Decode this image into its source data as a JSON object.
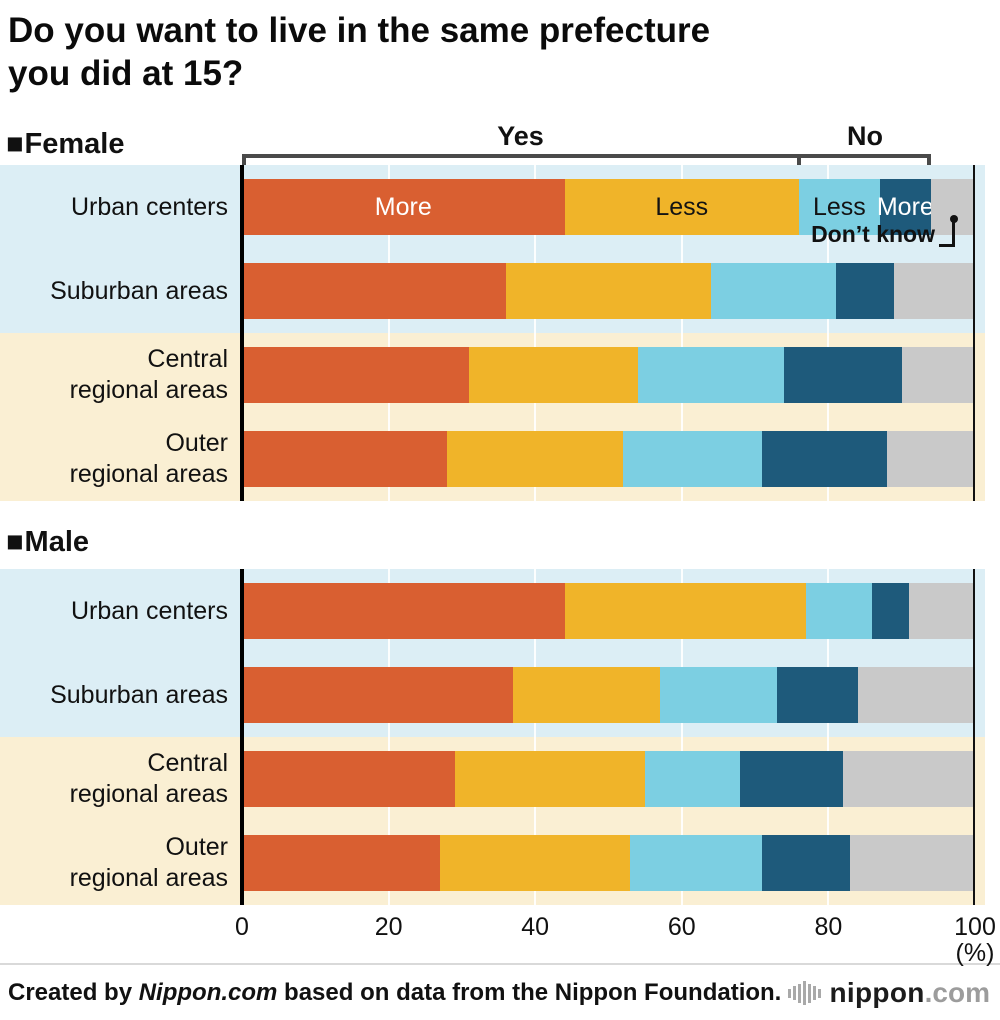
{
  "title": {
    "line1": "Do you want to live in the same prefecture",
    "line2": "you did at 15?"
  },
  "sections": {
    "female": {
      "marker": "■",
      "label": "Female"
    },
    "male": {
      "marker": "■",
      "label": "Male"
    }
  },
  "bracket": {
    "yes": "Yes",
    "no": "No"
  },
  "inline_labels": {
    "yes_more": "More",
    "yes_less": "Less",
    "no_less": "Less",
    "no_more": "More"
  },
  "callout": {
    "label": "Don’t know"
  },
  "axis": {
    "unit": "(%)"
  },
  "footer": {
    "credit_prefix": "Created by ",
    "credit_brand": "Nippon.com",
    "credit_suffix": " based on data from the Nippon Foundation.",
    "logo_main": "nippon",
    "logo_suffix": ".com"
  },
  "colors": {
    "yes_more": "#d95f31",
    "yes_less": "#f0b429",
    "no_less": "#7ccfe2",
    "no_more": "#1e5a7b",
    "dont_know": "#c9c9c9",
    "band_blue": "#dceef5",
    "band_cream": "#faefd3",
    "bracket_line": "#4a4a4a"
  },
  "chart_data": {
    "type": "bar",
    "variant": "stacked-horizontal",
    "title": "Do you want to live in the same prefecture you did at 15?",
    "unit": "%",
    "xlim": [
      0,
      100
    ],
    "x_ticks": [
      0,
      20,
      40,
      60,
      80,
      100
    ],
    "xlabel": "(%)",
    "segments": [
      {
        "key": "yes_more",
        "label": "Yes – More",
        "color": "#d95f31"
      },
      {
        "key": "yes_less",
        "label": "Yes – Less",
        "color": "#f0b429"
      },
      {
        "key": "no_less",
        "label": "No – Less",
        "color": "#7ccfe2"
      },
      {
        "key": "no_more",
        "label": "No – More",
        "color": "#1e5a7b"
      },
      {
        "key": "dont_know",
        "label": "Don’t know",
        "color": "#c9c9c9"
      }
    ],
    "groups": [
      {
        "name": "Female",
        "rows": [
          {
            "category": [
              "Urban centers"
            ],
            "values": [
              44,
              32,
              11,
              7,
              6
            ],
            "band": "blue"
          },
          {
            "category": [
              "Suburban areas"
            ],
            "values": [
              36,
              28,
              17,
              8,
              11
            ],
            "band": "blue"
          },
          {
            "category": [
              "Central",
              "regional areas"
            ],
            "values": [
              31,
              23,
              20,
              16,
              10
            ],
            "band": "cream"
          },
          {
            "category": [
              "Outer",
              "regional areas"
            ],
            "values": [
              28,
              24,
              19,
              17,
              12
            ],
            "band": "cream"
          }
        ]
      },
      {
        "name": "Male",
        "rows": [
          {
            "category": [
              "Urban centers"
            ],
            "values": [
              44,
              33,
              9,
              5,
              9
            ],
            "band": "blue"
          },
          {
            "category": [
              "Suburban areas"
            ],
            "values": [
              37,
              20,
              16,
              11,
              16
            ],
            "band": "blue"
          },
          {
            "category": [
              "Central",
              "regional areas"
            ],
            "values": [
              29,
              26,
              13,
              14,
              18
            ],
            "band": "cream"
          },
          {
            "category": [
              "Outer",
              "regional areas"
            ],
            "values": [
              27,
              26,
              18,
              12,
              17
            ],
            "band": "cream"
          }
        ]
      }
    ]
  }
}
